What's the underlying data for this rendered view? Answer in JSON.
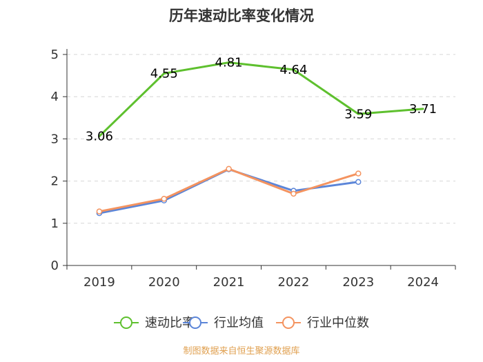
{
  "chart_data": {
    "type": "line",
    "title": "历年速动比率变化情况",
    "categories": [
      "2019",
      "2020",
      "2021",
      "2022",
      "2023",
      "2024"
    ],
    "ylim": [
      0,
      5
    ],
    "yticks": [
      0,
      1,
      2,
      3,
      4,
      5
    ],
    "grid": "horizontal-dashed",
    "legend_position": "bottom",
    "series": [
      {
        "name": "速动比率",
        "color": "#5ec02e",
        "values": [
          3.06,
          4.55,
          4.81,
          4.64,
          3.59,
          3.71
        ],
        "labels": [
          "3.06",
          "4.55",
          "4.81",
          "4.64",
          "3.59",
          "3.71"
        ],
        "markers": false
      },
      {
        "name": "行业均值",
        "color": "#5b85d8",
        "values": [
          1.24,
          1.54,
          2.28,
          1.77,
          1.98,
          null
        ],
        "markers": true
      },
      {
        "name": "行业中位数",
        "color": "#f4935f",
        "values": [
          1.28,
          1.58,
          2.29,
          1.7,
          2.18,
          null
        ],
        "markers": true
      }
    ]
  },
  "source_text": "制图数据来自恒生聚源数据库"
}
